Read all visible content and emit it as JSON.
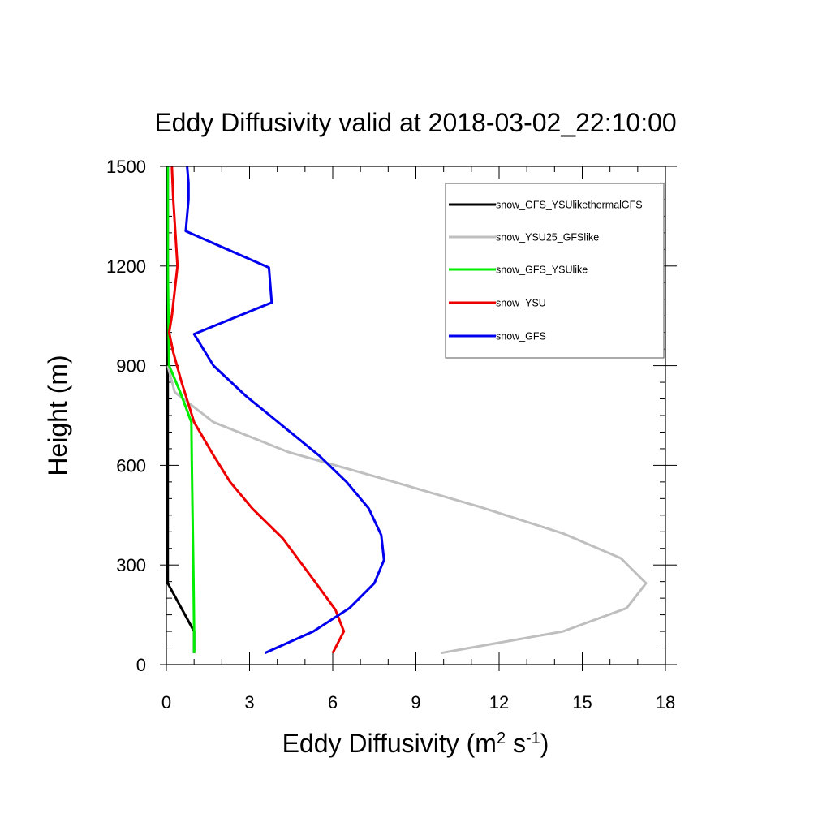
{
  "chart_data": {
    "type": "line",
    "title": "Eddy Diffusivity valid at 2018-03-02_22:10:00",
    "xlabel": {
      "main": "Eddy Diffusivity (m",
      "sup1": "2",
      "mid": " s",
      "sup2": "-1",
      "end": ")"
    },
    "ylabel": "Height (m)",
    "xlim": [
      0,
      18
    ],
    "ylim": [
      0,
      1500
    ],
    "x_ticks": [
      0,
      3,
      6,
      9,
      12,
      15,
      18
    ],
    "y_ticks": [
      0,
      300,
      600,
      900,
      1200,
      1500
    ],
    "x_minor_step": 1,
    "y_minor_step": 50,
    "legend_position": "top-right",
    "series": [
      {
        "name": "snow_GFS_YSUlikethermalGFS",
        "color": "#000000",
        "points": [
          [
            1.0,
            35
          ],
          [
            1.0,
            100
          ],
          [
            0.05,
            245
          ],
          [
            0.05,
            600
          ],
          [
            0.05,
            900
          ],
          [
            0.05,
            1200
          ],
          [
            0.05,
            1500
          ]
        ]
      },
      {
        "name": "snow_YSU25_GFSlike",
        "color": "#bfbfbf",
        "points": [
          [
            9.9,
            35
          ],
          [
            14.3,
            100
          ],
          [
            16.6,
            170
          ],
          [
            17.3,
            245
          ],
          [
            16.4,
            320
          ],
          [
            14.3,
            395
          ],
          [
            11.3,
            475
          ],
          [
            7.8,
            560
          ],
          [
            4.4,
            640
          ],
          [
            1.7,
            730
          ],
          [
            0.3,
            820
          ],
          [
            0.05,
            900
          ]
        ]
      },
      {
        "name": "snow_GFS_YSUlike",
        "color": "#00ee00",
        "points": [
          [
            1.0,
            35
          ],
          [
            1.0,
            100
          ],
          [
            0.98,
            245
          ],
          [
            0.92,
            600
          ],
          [
            0.9,
            730
          ],
          [
            0.5,
            820
          ],
          [
            0.1,
            900
          ],
          [
            0.05,
            1200
          ],
          [
            0.05,
            1500
          ]
        ]
      },
      {
        "name": "snow_YSU",
        "color": "#ee0000",
        "points": [
          [
            6.0,
            35
          ],
          [
            6.4,
            100
          ],
          [
            6.1,
            165
          ],
          [
            5.4,
            245
          ],
          [
            4.2,
            380
          ],
          [
            3.1,
            470
          ],
          [
            2.3,
            550
          ],
          [
            1.7,
            630
          ],
          [
            1.0,
            730
          ],
          [
            0.55,
            850
          ],
          [
            0.25,
            940
          ],
          [
            0.1,
            1000
          ],
          [
            0.2,
            1050
          ],
          [
            0.4,
            1200
          ],
          [
            0.25,
            1400
          ],
          [
            0.2,
            1500
          ]
        ]
      },
      {
        "name": "snow_GFS",
        "color": "#0000ee",
        "points": [
          [
            3.55,
            35
          ],
          [
            5.3,
            100
          ],
          [
            6.6,
            170
          ],
          [
            7.5,
            245
          ],
          [
            7.85,
            315
          ],
          [
            7.75,
            390
          ],
          [
            7.3,
            470
          ],
          [
            6.5,
            550
          ],
          [
            5.5,
            630
          ],
          [
            2.85,
            810
          ],
          [
            1.7,
            900
          ],
          [
            1.0,
            995
          ],
          [
            3.8,
            1090
          ],
          [
            3.7,
            1195
          ],
          [
            0.7,
            1305
          ],
          [
            0.8,
            1400
          ],
          [
            0.8,
            1450
          ],
          [
            0.75,
            1500
          ]
        ]
      }
    ]
  }
}
